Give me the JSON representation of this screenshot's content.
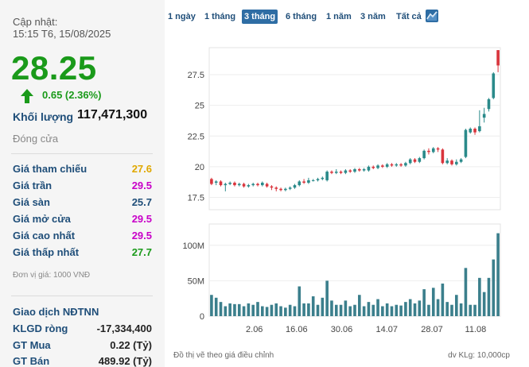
{
  "update": {
    "label": "Cập nhật:",
    "time": "15:15 T6, 15/08/2025"
  },
  "price": {
    "value": "28.25",
    "change": "0.65 (2.36%)"
  },
  "volume": {
    "label": "Khối lượng",
    "value": "117,471,300"
  },
  "status": "Đóng cửa",
  "price_rows": [
    {
      "label": "Giá tham chiếu",
      "value": "27.6",
      "color": "#e0a800"
    },
    {
      "label": "Giá trần",
      "value": "29.5",
      "color": "#c800c8"
    },
    {
      "label": "Giá sàn",
      "value": "25.7",
      "color": "#1f4e79"
    },
    {
      "label": "Giá mở cửa",
      "value": "29.5",
      "color": "#c800c8"
    },
    {
      "label": "Giá cao nhất",
      "value": "29.5",
      "color": "#c800c8"
    },
    {
      "label": "Giá thấp nhất",
      "value": "27.7",
      "color": "#1a9a1a"
    }
  ],
  "unit_note": "Đơn vị giá: 1000 VNĐ",
  "foreign": {
    "title": "Giao dịch NĐTNN",
    "rows": [
      {
        "label": "KLGD ròng",
        "value": "-17,334,400"
      },
      {
        "label": "GT Mua",
        "value": "0.22 (Tỷ)"
      },
      {
        "label": "GT Bán",
        "value": "489.92 (Tỷ)"
      }
    ]
  },
  "tabs": [
    "1 ngày",
    "1 tháng",
    "3 tháng",
    "6 tháng",
    "1 năm",
    "3 năm",
    "Tất cả"
  ],
  "active_tab": "3 tháng",
  "colors": {
    "up": "#2a8a8a",
    "down": "#d9343c",
    "volume": "#3b7f8c",
    "accent": "#2e6da4"
  },
  "footer": {
    "note": "Đồ thị vẽ theo giá điều chỉnh",
    "volume_unit": "dv KLg: 10,000cp"
  },
  "chart_data": {
    "type": "candlestick",
    "price_axis": {
      "ticks": [
        "17.5",
        "20",
        "22.5",
        "25",
        "27.5"
      ],
      "range": [
        16.5,
        29.7
      ]
    },
    "volume_axis": {
      "ticks": [
        "0",
        "50M",
        "100M"
      ],
      "range": [
        0,
        130
      ]
    },
    "x_ticks": [
      "2.06",
      "16.06",
      "30.06",
      "14.07",
      "28.07",
      "11.08"
    ],
    "candles": [
      {
        "o": 19.0,
        "c": 18.6,
        "h": 19.1,
        "l": 18.5,
        "v": 30
      },
      {
        "o": 18.7,
        "c": 18.8,
        "h": 18.9,
        "l": 18.5,
        "v": 26
      },
      {
        "o": 18.8,
        "c": 18.5,
        "h": 18.9,
        "l": 18.4,
        "v": 20
      },
      {
        "o": 18.5,
        "c": 18.6,
        "h": 18.7,
        "l": 18.0,
        "v": 14
      },
      {
        "o": 18.6,
        "c": 18.7,
        "h": 18.8,
        "l": 18.5,
        "v": 18
      },
      {
        "o": 18.7,
        "c": 18.5,
        "h": 18.8,
        "l": 18.4,
        "v": 17
      },
      {
        "o": 18.5,
        "c": 18.6,
        "h": 18.7,
        "l": 18.4,
        "v": 17
      },
      {
        "o": 18.6,
        "c": 18.4,
        "h": 18.7,
        "l": 18.3,
        "v": 14
      },
      {
        "o": 18.4,
        "c": 18.5,
        "h": 18.6,
        "l": 18.3,
        "v": 18
      },
      {
        "o": 18.5,
        "c": 18.6,
        "h": 18.7,
        "l": 18.4,
        "v": 16
      },
      {
        "o": 18.6,
        "c": 18.5,
        "h": 18.7,
        "l": 18.4,
        "v": 20
      },
      {
        "o": 18.5,
        "c": 18.7,
        "h": 18.8,
        "l": 18.4,
        "v": 14
      },
      {
        "o": 18.6,
        "c": 18.4,
        "h": 18.7,
        "l": 18.3,
        "v": 13
      },
      {
        "o": 18.4,
        "c": 18.3,
        "h": 18.5,
        "l": 18.1,
        "v": 16
      },
      {
        "o": 18.3,
        "c": 18.2,
        "h": 18.4,
        "l": 18.0,
        "v": 18
      },
      {
        "o": 18.2,
        "c": 18.1,
        "h": 18.3,
        "l": 18.0,
        "v": 14
      },
      {
        "o": 18.1,
        "c": 18.2,
        "h": 18.3,
        "l": 18.0,
        "v": 12
      },
      {
        "o": 18.2,
        "c": 18.3,
        "h": 18.4,
        "l": 18.1,
        "v": 16
      },
      {
        "o": 18.3,
        "c": 18.5,
        "h": 18.6,
        "l": 18.2,
        "v": 14
      },
      {
        "o": 18.5,
        "c": 18.8,
        "h": 18.9,
        "l": 18.4,
        "v": 42
      },
      {
        "o": 18.8,
        "c": 18.7,
        "h": 19.0,
        "l": 18.6,
        "v": 18
      },
      {
        "o": 18.7,
        "c": 18.9,
        "h": 19.1,
        "l": 18.6,
        "v": 18
      },
      {
        "o": 18.9,
        "c": 18.9,
        "h": 19.0,
        "l": 18.8,
        "v": 28
      },
      {
        "o": 18.9,
        "c": 19.0,
        "h": 19.1,
        "l": 18.8,
        "v": 16
      },
      {
        "o": 19.0,
        "c": 19.1,
        "h": 19.2,
        "l": 18.9,
        "v": 26
      },
      {
        "o": 18.9,
        "c": 19.6,
        "h": 19.7,
        "l": 18.8,
        "v": 50
      },
      {
        "o": 19.6,
        "c": 19.5,
        "h": 19.7,
        "l": 19.4,
        "v": 22
      },
      {
        "o": 19.5,
        "c": 19.6,
        "h": 19.8,
        "l": 19.4,
        "v": 16
      },
      {
        "o": 19.6,
        "c": 19.5,
        "h": 19.7,
        "l": 19.4,
        "v": 16
      },
      {
        "o": 19.5,
        "c": 19.7,
        "h": 19.8,
        "l": 19.4,
        "v": 22
      },
      {
        "o": 19.7,
        "c": 19.6,
        "h": 19.8,
        "l": 19.5,
        "v": 14
      },
      {
        "o": 19.6,
        "c": 19.8,
        "h": 19.9,
        "l": 19.5,
        "v": 16
      },
      {
        "o": 19.8,
        "c": 19.7,
        "h": 19.9,
        "l": 19.6,
        "v": 30
      },
      {
        "o": 19.7,
        "c": 19.8,
        "h": 19.9,
        "l": 19.6,
        "v": 14
      },
      {
        "o": 19.7,
        "c": 20.0,
        "h": 20.1,
        "l": 19.6,
        "v": 20
      },
      {
        "o": 20.0,
        "c": 19.9,
        "h": 20.1,
        "l": 19.8,
        "v": 16
      },
      {
        "o": 19.9,
        "c": 20.1,
        "h": 20.2,
        "l": 19.8,
        "v": 24
      },
      {
        "o": 20.1,
        "c": 20.0,
        "h": 20.2,
        "l": 19.9,
        "v": 14
      },
      {
        "o": 20.0,
        "c": 20.2,
        "h": 20.3,
        "l": 19.9,
        "v": 18
      },
      {
        "o": 20.2,
        "c": 20.1,
        "h": 20.3,
        "l": 20.0,
        "v": 14
      },
      {
        "o": 20.1,
        "c": 20.2,
        "h": 20.3,
        "l": 20.0,
        "v": 16
      },
      {
        "o": 20.2,
        "c": 20.1,
        "h": 20.3,
        "l": 20.0,
        "v": 15
      },
      {
        "o": 20.1,
        "c": 20.3,
        "h": 20.4,
        "l": 20.0,
        "v": 20
      },
      {
        "o": 20.3,
        "c": 20.6,
        "h": 20.7,
        "l": 20.2,
        "v": 24
      },
      {
        "o": 20.6,
        "c": 20.4,
        "h": 20.7,
        "l": 20.3,
        "v": 18
      },
      {
        "o": 20.4,
        "c": 20.7,
        "h": 20.8,
        "l": 20.3,
        "v": 22
      },
      {
        "o": 20.7,
        "c": 21.3,
        "h": 21.4,
        "l": 20.6,
        "v": 38
      },
      {
        "o": 21.3,
        "c": 21.2,
        "h": 21.5,
        "l": 21.0,
        "v": 16
      },
      {
        "o": 21.2,
        "c": 21.5,
        "h": 21.6,
        "l": 21.1,
        "v": 40
      },
      {
        "o": 21.5,
        "c": 21.4,
        "h": 21.6,
        "l": 21.2,
        "v": 24
      },
      {
        "o": 21.4,
        "c": 20.3,
        "h": 21.5,
        "l": 20.2,
        "v": 46
      },
      {
        "o": 20.3,
        "c": 20.5,
        "h": 20.7,
        "l": 20.2,
        "v": 20
      },
      {
        "o": 20.5,
        "c": 20.2,
        "h": 20.6,
        "l": 20.1,
        "v": 16
      },
      {
        "o": 20.2,
        "c": 20.4,
        "h": 20.6,
        "l": 20.1,
        "v": 30
      },
      {
        "o": 20.4,
        "c": 20.6,
        "h": 20.7,
        "l": 20.3,
        "v": 18
      },
      {
        "o": 20.8,
        "c": 23.0,
        "h": 23.1,
        "l": 20.7,
        "v": 68
      },
      {
        "o": 22.8,
        "c": 23.1,
        "h": 23.2,
        "l": 22.7,
        "v": 16
      },
      {
        "o": 23.1,
        "c": 22.8,
        "h": 23.2,
        "l": 22.6,
        "v": 16
      },
      {
        "o": 22.9,
        "c": 23.3,
        "h": 24.6,
        "l": 22.8,
        "v": 54
      },
      {
        "o": 24.0,
        "c": 24.3,
        "h": 24.8,
        "l": 23.6,
        "v": 34
      },
      {
        "o": 24.7,
        "c": 25.5,
        "h": 25.6,
        "l": 24.5,
        "v": 54
      },
      {
        "o": 25.6,
        "c": 27.6,
        "h": 27.7,
        "l": 25.5,
        "v": 80
      },
      {
        "o": 29.5,
        "c": 28.25,
        "h": 29.5,
        "l": 27.7,
        "v": 117
      }
    ]
  }
}
